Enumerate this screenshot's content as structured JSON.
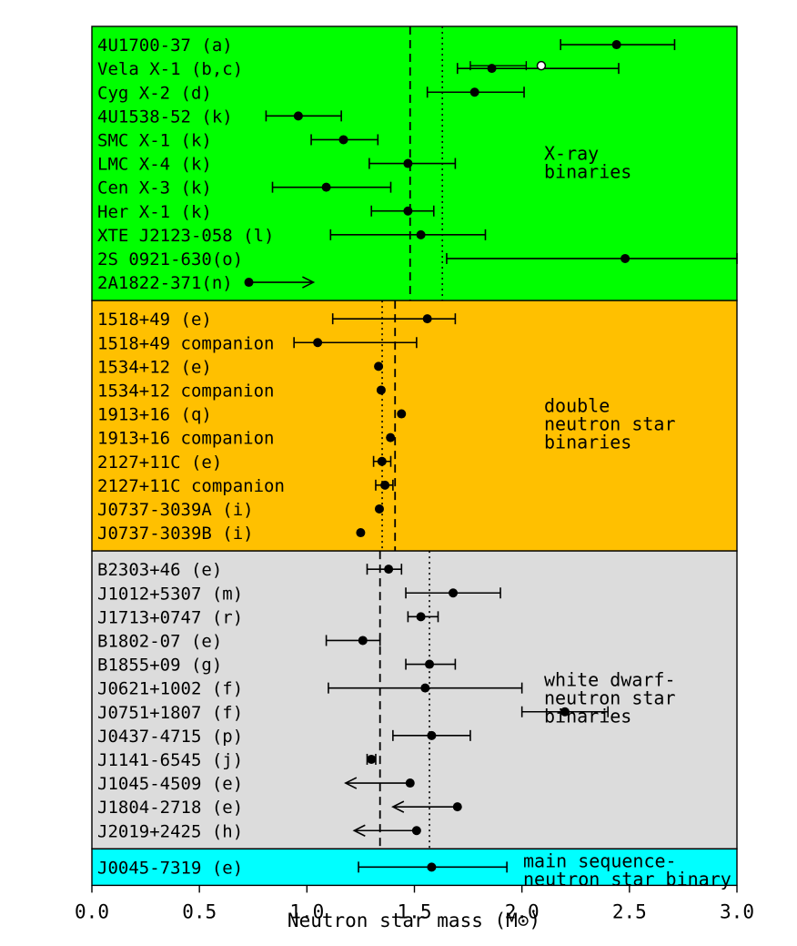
{
  "chart_data": {
    "type": "scatter",
    "xlabel": "Neutron star mass (M⊙)",
    "xlim": [
      0.0,
      3.0
    ],
    "x_ticks": [
      "0.0",
      "0.5",
      "1.0",
      "1.5",
      "2.0",
      "2.5",
      "3.0"
    ],
    "grid": false,
    "groups": [
      {
        "name": [
          "X-ray",
          "binaries"
        ],
        "color": "#00ff00",
        "dashed_line": 1.48,
        "dotted_line": 1.63,
        "points": [
          {
            "label": "4U1700-37 (a)",
            "x": 2.44,
            "err_low": 2.18,
            "err_high": 2.71
          },
          {
            "label": "Vela X-1 (b,c)",
            "x": 1.86,
            "err_low": 1.7,
            "err_high": 2.45,
            "x2": 2.09,
            "err2_low": 1.76,
            "err2_high": 2.02,
            "marker2": "open"
          },
          {
            "label": "Cyg X-2 (d)",
            "x": 1.78,
            "err_low": 1.56,
            "err_high": 2.01
          },
          {
            "label": "4U1538-52 (k)",
            "x": 0.96,
            "err_low": 0.81,
            "err_high": 1.16
          },
          {
            "label": "SMC X-1 (k)",
            "x": 1.17,
            "err_low": 1.02,
            "err_high": 1.33
          },
          {
            "label": "LMC X-4 (k)",
            "x": 1.47,
            "err_low": 1.29,
            "err_high": 1.69
          },
          {
            "label": "Cen X-3 (k)",
            "x": 1.09,
            "err_low": 0.84,
            "err_high": 1.39
          },
          {
            "label": "Her X-1 (k)",
            "x": 1.47,
            "err_low": 1.3,
            "err_high": 1.59
          },
          {
            "label": "XTE J2123-058 (l)",
            "x": 1.53,
            "err_low": 1.11,
            "err_high": 1.83
          },
          {
            "label": "2S 0921-630(o)",
            "x": 2.48,
            "err_low": 1.65,
            "err_high": 3.0
          },
          {
            "label": "2A1822-371(n)",
            "x": 0.73,
            "err_high": 1.03,
            "limit": "lower"
          }
        ]
      },
      {
        "name": [
          "double",
          "neutron star",
          "binaries"
        ],
        "color": "#ffc000",
        "dashed_line": 1.41,
        "dotted_line": 1.35,
        "points": [
          {
            "label": "1518+49 (e)",
            "x": 1.56,
            "err_low": 1.12,
            "err_high": 1.69
          },
          {
            "label": "1518+49 companion",
            "x": 1.05,
            "err_low": 0.94,
            "err_high": 1.51
          },
          {
            "label": "1534+12 (e)",
            "x": 1.3332
          },
          {
            "label": "1534+12 companion",
            "x": 1.3452
          },
          {
            "label": "1913+16 (q)",
            "x": 1.4398
          },
          {
            "label": "1913+16 companion",
            "x": 1.3886
          },
          {
            "label": "2127+11C (e)",
            "x": 1.349,
            "err_low": 1.31,
            "err_high": 1.39
          },
          {
            "label": "2127+11C companion",
            "x": 1.363,
            "err_low": 1.32,
            "err_high": 1.4
          },
          {
            "label": "J0737-3039A (i)",
            "x": 1.337
          },
          {
            "label": "J0737-3039B (i)",
            "x": 1.25
          }
        ]
      },
      {
        "name": [
          "white dwarf-",
          "neutron star",
          "binaries"
        ],
        "color": "#dcdcdc",
        "dashed_line": 1.34,
        "dotted_line": 1.57,
        "points": [
          {
            "label": "B2303+46 (e)",
            "x": 1.38,
            "err_low": 1.28,
            "err_high": 1.44
          },
          {
            "label": "J1012+5307 (m)",
            "x": 1.68,
            "err_low": 1.46,
            "err_high": 1.9
          },
          {
            "label": "J1713+0747 (r)",
            "x": 1.53,
            "err_low": 1.47,
            "err_high": 1.61
          },
          {
            "label": "B1802-07 (e)",
            "x": 1.26,
            "err_low": 1.09,
            "err_high": 1.34
          },
          {
            "label": "B1855+09 (g)",
            "x": 1.57,
            "err_low": 1.46,
            "err_high": 1.69
          },
          {
            "label": "J0621+1002 (f)",
            "x": 1.55,
            "err_low": 1.1,
            "err_high": 2.0
          },
          {
            "label": "J0751+1807 (f)",
            "x": 2.2,
            "err_low": 2.0,
            "err_high": 2.4
          },
          {
            "label": "J0437-4715 (p)",
            "x": 1.58,
            "err_low": 1.4,
            "err_high": 1.76
          },
          {
            "label": "J1141-6545 (j)",
            "x": 1.3,
            "err_low": 1.28,
            "err_high": 1.32
          },
          {
            "label": "J1045-4509 (e)",
            "x": 1.48,
            "err_low": 1.18,
            "limit": "upper"
          },
          {
            "label": "J1804-2718 (e)",
            "x": 1.7,
            "err_low": 1.4,
            "limit": "upper"
          },
          {
            "label": "J2019+2425 (h)",
            "x": 1.51,
            "err_low": 1.22,
            "limit": "upper"
          }
        ]
      },
      {
        "name": [
          "main sequence-",
          "neutron star binary"
        ],
        "color": "#00ffff",
        "points": [
          {
            "label": "J0045-7319 (e)",
            "x": 1.58,
            "err_low": 1.24,
            "err_high": 1.93
          }
        ]
      }
    ]
  }
}
